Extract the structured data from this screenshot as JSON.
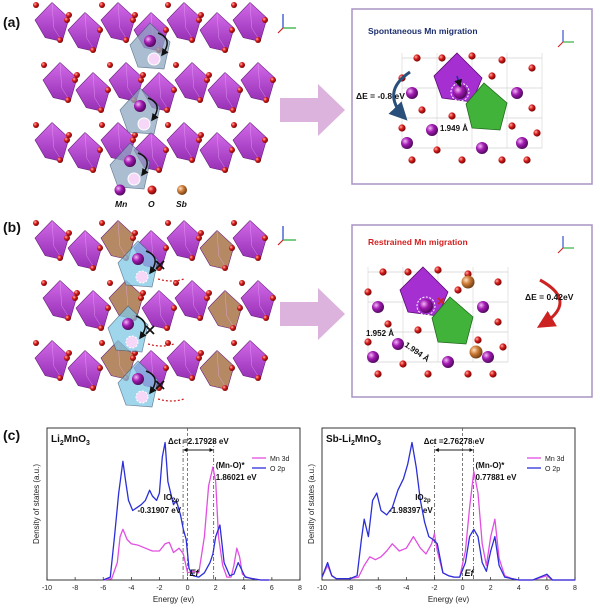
{
  "panels": {
    "a": {
      "label": "(a)",
      "title": "Spontaneous Mn migration",
      "energy": "ΔE = -0.8 eV",
      "bond": "1.949 Å"
    },
    "b": {
      "label": "(b)",
      "title": "Restrained Mn migration",
      "energy": "ΔE = 0.42eV",
      "bond1": "1.952 Å",
      "bond2": "1.994 Å"
    },
    "legend": [
      {
        "name": "Mn",
        "color": "#a01ab0"
      },
      {
        "name": "O",
        "color": "#d51a1a"
      },
      {
        "name": "Sb",
        "color": "#c98242"
      }
    ],
    "c_label": "(c)"
  },
  "colors": {
    "mn_octa": "#b42ed8",
    "migrate_octa": "#8fa9c2",
    "sb_octa": "#b08058",
    "green_octa": "#41b23a",
    "mn_atom": "#9c1aa8",
    "o_atom": "#d51a1a",
    "sb_atom": "#cc7a36",
    "arrow": "#dbb3dd",
    "box_border": "#a893c4"
  },
  "chart_data": [
    {
      "type": "line",
      "name": "left-dos",
      "title": "Li2MnO3",
      "title_main": "Li",
      "title_sub1": "2",
      "title_mid": "MnO",
      "title_sub2": "3",
      "xlabel": "Energy (ev)",
      "ylabel": "Density of states (a.u.)",
      "xlim": [
        -10,
        8
      ],
      "xticks": [
        -10,
        -8,
        -6,
        -4,
        -2,
        0,
        2,
        4,
        6,
        8
      ],
      "fermi_label": "Ef",
      "legend": [
        "Mn 3d",
        "O 2p"
      ],
      "annotations": {
        "delta": "Δct =2.17928 eV",
        "io": "IO",
        "io_sub": "2p",
        "io_val": "-0.31907 eV",
        "mno": "(Mn-O)*",
        "mno_val": "1.86021 eV"
      },
      "markers": [
        -0.31907,
        1.86021
      ],
      "series": [
        {
          "name": "Mn 3d",
          "color": "#e14fe1",
          "x": [
            -6,
            -5.4,
            -5,
            -4.8,
            -4.6,
            -4.3,
            -4,
            -3.5,
            -3,
            -2.5,
            -2,
            -1.6,
            -1.3,
            -1,
            -0.6,
            -0.3,
            0,
            0.4,
            0.8,
            1.2,
            1.5,
            1.8,
            2,
            2.2,
            2.5,
            2.8,
            3.1,
            3.3,
            3.5,
            3.7,
            3.9,
            4.2,
            4.6,
            5.2,
            5.8
          ],
          "y": [
            0,
            0.01,
            0.12,
            0.3,
            0.35,
            0.28,
            0.25,
            0.24,
            0.22,
            0.2,
            0.2,
            0.25,
            0.26,
            0.19,
            0.22,
            0.18,
            0.05,
            0.06,
            0.05,
            0.3,
            0.65,
            0.78,
            0.68,
            0.3,
            0.1,
            0.02,
            0.02,
            0.1,
            0.22,
            0.16,
            0.04,
            0.02,
            0.01,
            0,
            0
          ]
        },
        {
          "name": "O 2p",
          "color": "#2b2fd8",
          "x": [
            -6,
            -5.5,
            -5.2,
            -4.9,
            -4.6,
            -4.4,
            -4.2,
            -3.9,
            -3.6,
            -3.3,
            -3,
            -2.7,
            -2.5,
            -2.2,
            -2,
            -1.8,
            -1.6,
            -1.4,
            -1.2,
            -1,
            -0.8,
            -0.5,
            -0.3,
            -0.1,
            0.1,
            0.4,
            0.8,
            1.2,
            1.6,
            1.8,
            2,
            2.3,
            2.6,
            3,
            3.3,
            3.6,
            3.8,
            4.1,
            4.6,
            5.2,
            5.8
          ],
          "y": [
            0,
            0.02,
            0.3,
            0.6,
            0.82,
            0.68,
            0.55,
            0.48,
            0.5,
            0.52,
            0.55,
            0.62,
            0.58,
            0.55,
            0.6,
            0.85,
            0.95,
            0.68,
            0.6,
            0.52,
            0.55,
            0.45,
            0.35,
            0.28,
            0.08,
            0.03,
            0.02,
            0.05,
            0.12,
            0.18,
            0.3,
            0.38,
            0.12,
            0.03,
            0.04,
            0.12,
            0.08,
            0.02,
            0.01,
            0,
            0
          ]
        }
      ]
    },
    {
      "type": "line",
      "name": "right-dos",
      "title": "Sb-Li2MnO3",
      "title_main": "Sb-Li",
      "title_sub1": "2",
      "title_mid": "MnO",
      "title_sub2": "3",
      "xlabel": "Energy (ev)",
      "ylabel": "Density of states (a.u.)",
      "xlim": [
        -10,
        8
      ],
      "xticks": [
        -10,
        -8,
        -6,
        -4,
        -2,
        0,
        2,
        4,
        6,
        8
      ],
      "fermi_label": "Ef",
      "legend": [
        "Mn 3d",
        "O 2p"
      ],
      "annotations": {
        "delta": "Δct =2.76278 eV",
        "io": "IO",
        "io_sub": "2p",
        "io_val": "-1.98397 eV",
        "mno": "(Mn-O)*",
        "mno_val": "0.77881 eV"
      },
      "markers": [
        -1.98397,
        0.77881
      ],
      "series": [
        {
          "name": "Mn 3d",
          "color": "#e14fe1",
          "x": [
            -10,
            -9.6,
            -9.3,
            -9,
            -8,
            -7.4,
            -7,
            -6.6,
            -6.2,
            -5.8,
            -5.4,
            -5,
            -4.5,
            -4,
            -3.5,
            -3,
            -2.6,
            -2.2,
            -2,
            -1.8,
            -1.4,
            -1,
            -0.6,
            -0.2,
            0.2,
            0.5,
            0.8,
            1.1,
            1.4,
            1.7,
            2,
            2.3,
            2.6,
            3,
            3.5,
            4,
            5,
            6,
            6.4,
            7,
            8
          ],
          "y": [
            0.02,
            0.1,
            0.03,
            0.01,
            0.01,
            0.02,
            0.1,
            0.16,
            0.14,
            0.16,
            0.2,
            0.25,
            0.2,
            0.22,
            0.3,
            0.22,
            0.18,
            0.25,
            0.32,
            0.2,
            0.05,
            0.03,
            0.02,
            0.02,
            0.2,
            0.5,
            0.75,
            0.6,
            0.25,
            0.1,
            0.3,
            0.42,
            0.15,
            0.03,
            0.01,
            0,
            0,
            0.03,
            0,
            0,
            0
          ]
        },
        {
          "name": "O 2p",
          "color": "#2b2fd8",
          "x": [
            -10,
            -9.6,
            -9.3,
            -9,
            -8,
            -7.5,
            -7.2,
            -7,
            -6.7,
            -6.4,
            -6.1,
            -5.8,
            -5.4,
            -5,
            -4.6,
            -4.2,
            -3.9,
            -3.6,
            -3.3,
            -3,
            -2.7,
            -2.4,
            -2.1,
            -1.8,
            -1.4,
            -1,
            -0.6,
            -0.2,
            0.2,
            0.5,
            0.8,
            1.1,
            1.4,
            1.7,
            2,
            2.3,
            2.6,
            3,
            3.5,
            4,
            5,
            6,
            6.4,
            7,
            8
          ],
          "y": [
            0.02,
            0.12,
            0.03,
            0.01,
            0.01,
            0.03,
            0.28,
            0.42,
            0.3,
            0.55,
            0.6,
            0.48,
            0.45,
            0.5,
            0.62,
            0.7,
            0.8,
            0.95,
            0.78,
            0.55,
            0.4,
            0.3,
            0.28,
            0.25,
            0.05,
            0.03,
            0.02,
            0.02,
            0.12,
            0.3,
            0.35,
            0.3,
            0.12,
            0.06,
            0.2,
            0.3,
            0.1,
            0.02,
            0.01,
            0,
            0,
            0.04,
            0,
            0,
            0
          ]
        }
      ]
    }
  ]
}
